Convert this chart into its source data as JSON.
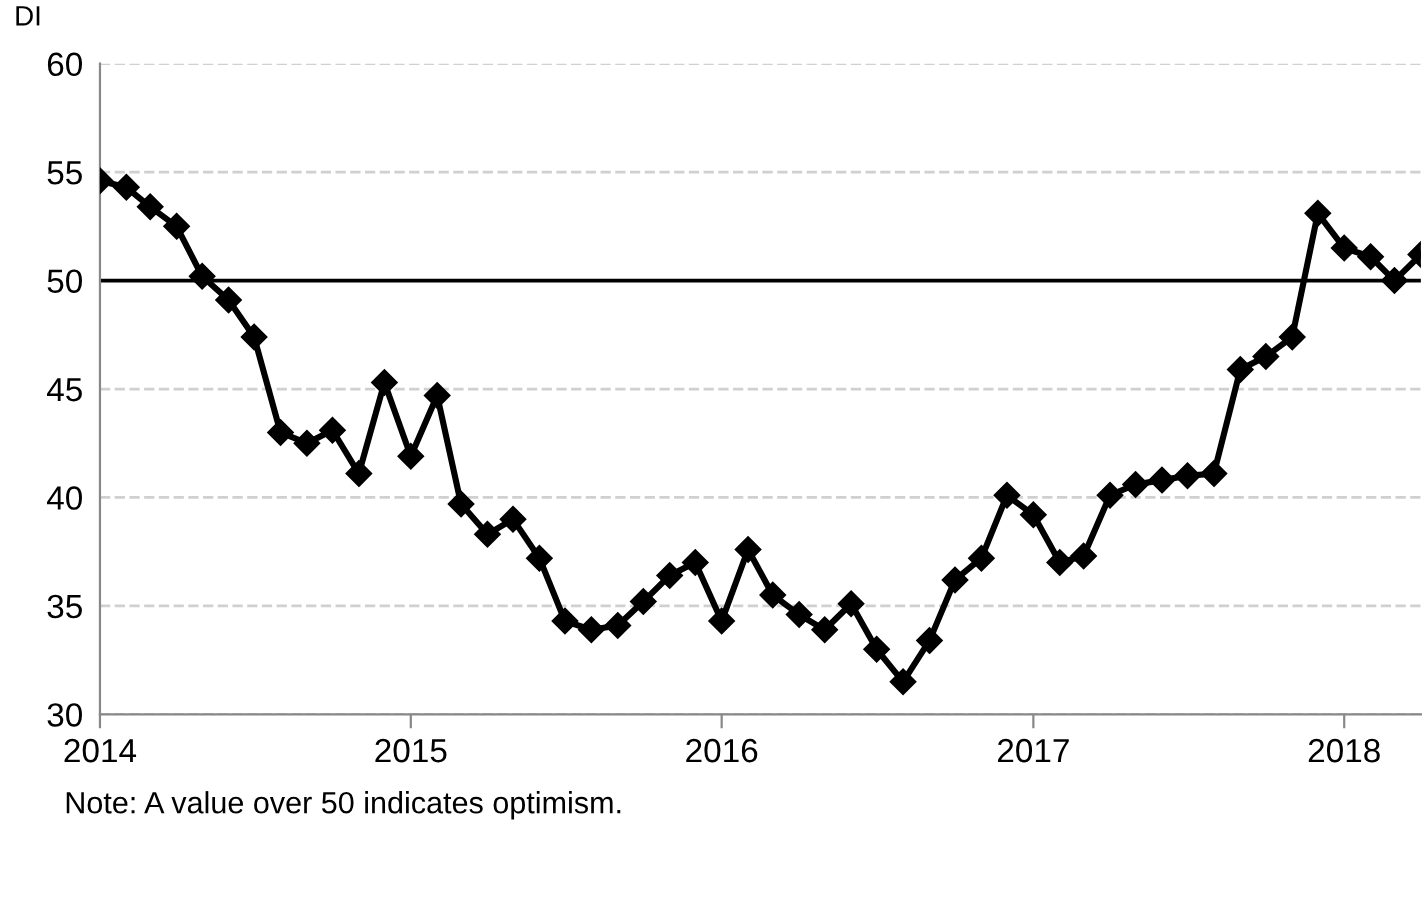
{
  "chart_data": {
    "type": "line",
    "ylabel": "DI",
    "x": [
      "2014-01",
      "2014-02",
      "2014-03",
      "2014-04",
      "2014-05",
      "2014-06",
      "2014-07",
      "2014-08",
      "2014-09",
      "2014-10",
      "2014-11",
      "2014-12",
      "2015-01",
      "2015-02",
      "2015-03",
      "2015-04",
      "2015-05",
      "2015-06",
      "2015-07",
      "2015-08",
      "2015-09",
      "2015-10",
      "2015-11",
      "2015-12",
      "2016-01",
      "2016-02",
      "2016-03",
      "2016-04",
      "2016-05",
      "2016-06",
      "2016-07",
      "2016-08",
      "2016-09",
      "2016-10",
      "2016-11",
      "2016-12",
      "2017-01",
      "2017-02",
      "2017-03",
      "2017-04",
      "2017-05",
      "2017-06",
      "2017-07",
      "2017-08",
      "2017-09",
      "2017-10",
      "2017-11",
      "2017-12",
      "2018-01",
      "2018-02",
      "2018-03",
      "2018-04"
    ],
    "series": [
      {
        "color": "#000000",
        "values": [
          54.6,
          54.3,
          53.4,
          52.5,
          50.2,
          49.1,
          47.4,
          43.0,
          42.5,
          43.1,
          41.1,
          45.3,
          41.9,
          44.7,
          39.7,
          38.3,
          39.0,
          37.2,
          34.3,
          33.9,
          34.1,
          35.2,
          36.4,
          37.0,
          34.3,
          37.6,
          35.5,
          34.6,
          33.9,
          35.1,
          33.0,
          31.5,
          33.4,
          36.2,
          37.2,
          40.1,
          39.2,
          37.0,
          37.3,
          40.1,
          40.6,
          40.8,
          41.0,
          41.1,
          45.9,
          46.5,
          47.4,
          53.1,
          51.5,
          51.1,
          50.0,
          51.2
        ]
      }
    ],
    "xlim": [
      "2014-01",
      "2018-04"
    ],
    "xticks": [
      {
        "value": "2014-01",
        "label": "2014"
      },
      {
        "value": "2015-01",
        "label": "2015"
      },
      {
        "value": "2016-01",
        "label": "2016"
      },
      {
        "value": "2017-01",
        "label": "2017"
      },
      {
        "value": "2018-01",
        "label": "2018"
      }
    ],
    "ylim": [
      30,
      60
    ],
    "yticks": [
      30,
      35,
      40,
      45,
      50,
      55,
      60
    ],
    "ref_lines": [
      {
        "axis": "y",
        "value": 50,
        "color": "#000000",
        "line_style": "solid"
      }
    ],
    "grid": "y",
    "legend": false,
    "marker": "diamond",
    "line_style": "solid",
    "annotations": [
      "Note: A value over 50 indicates optimism."
    ]
  }
}
